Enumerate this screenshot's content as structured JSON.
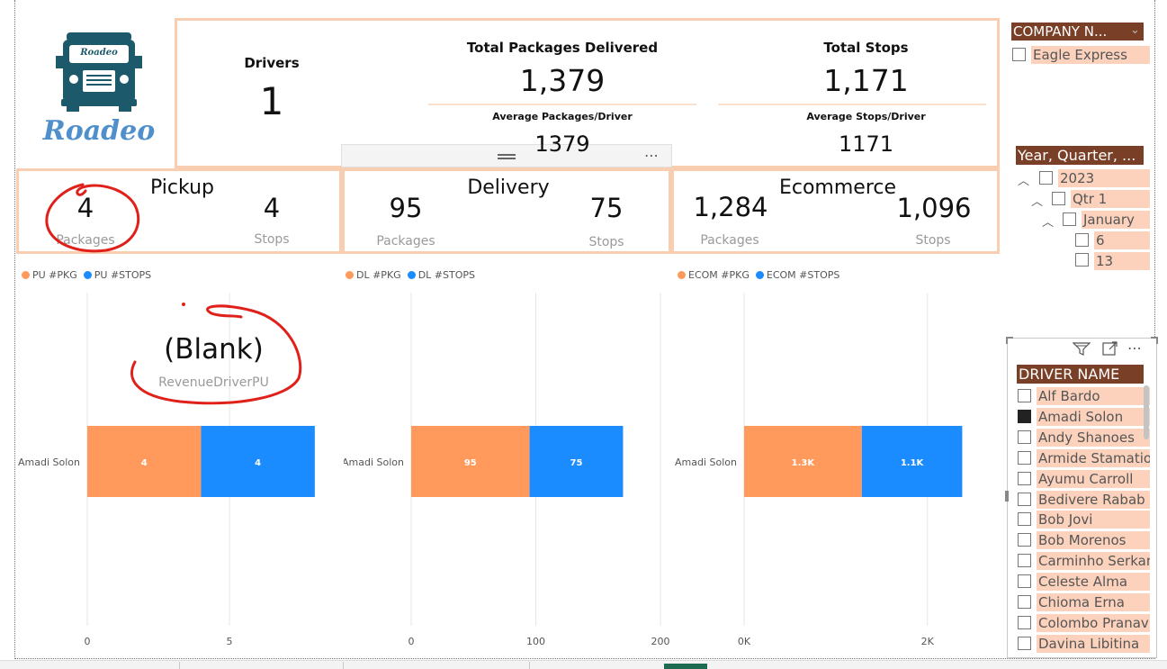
{
  "logo": {
    "text": "Roadeo",
    "badge": "Roadeo"
  },
  "kpis": {
    "drivers": {
      "title": "Drivers",
      "value": "1"
    },
    "total_packages": {
      "title": "Total Packages Delivered",
      "value": "1,379",
      "avg_title": "Average Packages/Driver",
      "avg_value": "1379"
    },
    "total_stops": {
      "title": "Total Stops",
      "value": "1,171",
      "avg_title": "Average Stops/Driver",
      "avg_value": "1171"
    }
  },
  "visual_toolbar": {
    "more": "⋯"
  },
  "categories": {
    "pickup": {
      "title": "Pickup",
      "packages_value": "4",
      "packages_label": "Packages",
      "stops_value": "4",
      "stops_label": "Stops"
    },
    "delivery": {
      "title": "Delivery",
      "packages_value": "95",
      "packages_label": "Packages",
      "stops_value": "75",
      "stops_label": "Stops"
    },
    "ecommerce": {
      "title": "Ecommerce",
      "packages_value": "1,284",
      "packages_label": "Packages",
      "stops_value": "1,096",
      "stops_label": "Stops"
    }
  },
  "blank_card": {
    "value": "(Blank)",
    "label": "RevenueDriverPU"
  },
  "colors": {
    "orange": "#ff9a5c",
    "blue": "#1a8cff",
    "slicer_header": "#7a3f27",
    "slicer_item": "#fcd2bd",
    "box_border": "#f9cdb0",
    "annotation": "#e0201a"
  },
  "chart_data": [
    {
      "type": "bar",
      "orientation": "horizontal-stacked",
      "categories": [
        "Amadi Solon"
      ],
      "series": [
        {
          "name": "PU #PKG",
          "values": [
            4
          ],
          "labels": [
            "4"
          ]
        },
        {
          "name": "PU #STOPS",
          "values": [
            4
          ],
          "labels": [
            "4"
          ]
        }
      ],
      "xlim": [
        0,
        8.7
      ],
      "xticks": [
        "0",
        "5"
      ],
      "legend": "top-left"
    },
    {
      "type": "bar",
      "orientation": "horizontal-stacked",
      "categories": [
        "Amadi Solon"
      ],
      "series": [
        {
          "name": "DL #PKG",
          "values": [
            95
          ],
          "labels": [
            "95"
          ]
        },
        {
          "name": "DL #STOPS",
          "values": [
            75
          ],
          "labels": [
            "75"
          ]
        }
      ],
      "xlim": [
        0,
        200
      ],
      "xticks": [
        "0",
        "100",
        "200"
      ],
      "legend": "top-left"
    },
    {
      "type": "bar",
      "orientation": "horizontal-stacked",
      "categories": [
        "Amadi Solon"
      ],
      "series": [
        {
          "name": "ECOM #PKG",
          "values": [
            1284
          ],
          "labels": [
            "1.3K"
          ]
        },
        {
          "name": "ECOM #STOPS",
          "values": [
            1096
          ],
          "labels": [
            "1.1K"
          ]
        }
      ],
      "xlim": [
        0,
        2700
      ],
      "xticks": [
        "0K",
        "2K"
      ],
      "legend": "top-left"
    }
  ],
  "slicers": {
    "company": {
      "header": "COMPANY N...",
      "items": [
        {
          "label": "Eagle Express",
          "checked": false
        }
      ]
    },
    "date": {
      "header": "Year, Quarter, ...",
      "year": "2023",
      "quarter": "Qtr 1",
      "month": "January",
      "days": [
        "6",
        "13"
      ]
    },
    "driver": {
      "header": "DRIVER NAME",
      "items": [
        {
          "label": "Alf Bardo",
          "checked": false
        },
        {
          "label": "Amadi Solon",
          "checked": true
        },
        {
          "label": "Andy Shanoes",
          "checked": false
        },
        {
          "label": "Armide Stamatios",
          "checked": false
        },
        {
          "label": "Ayumu Carroll",
          "checked": false
        },
        {
          "label": "Bedivere Rabab",
          "checked": false
        },
        {
          "label": "Bob Jovi",
          "checked": false
        },
        {
          "label": "Bob Morenos",
          "checked": false
        },
        {
          "label": "Carminho Serkan",
          "checked": false
        },
        {
          "label": "Celeste Alma",
          "checked": false
        },
        {
          "label": "Chioma Erna",
          "checked": false
        },
        {
          "label": "Colombo Pranav",
          "checked": false
        },
        {
          "label": "Davina Libitina",
          "checked": false
        }
      ]
    }
  }
}
